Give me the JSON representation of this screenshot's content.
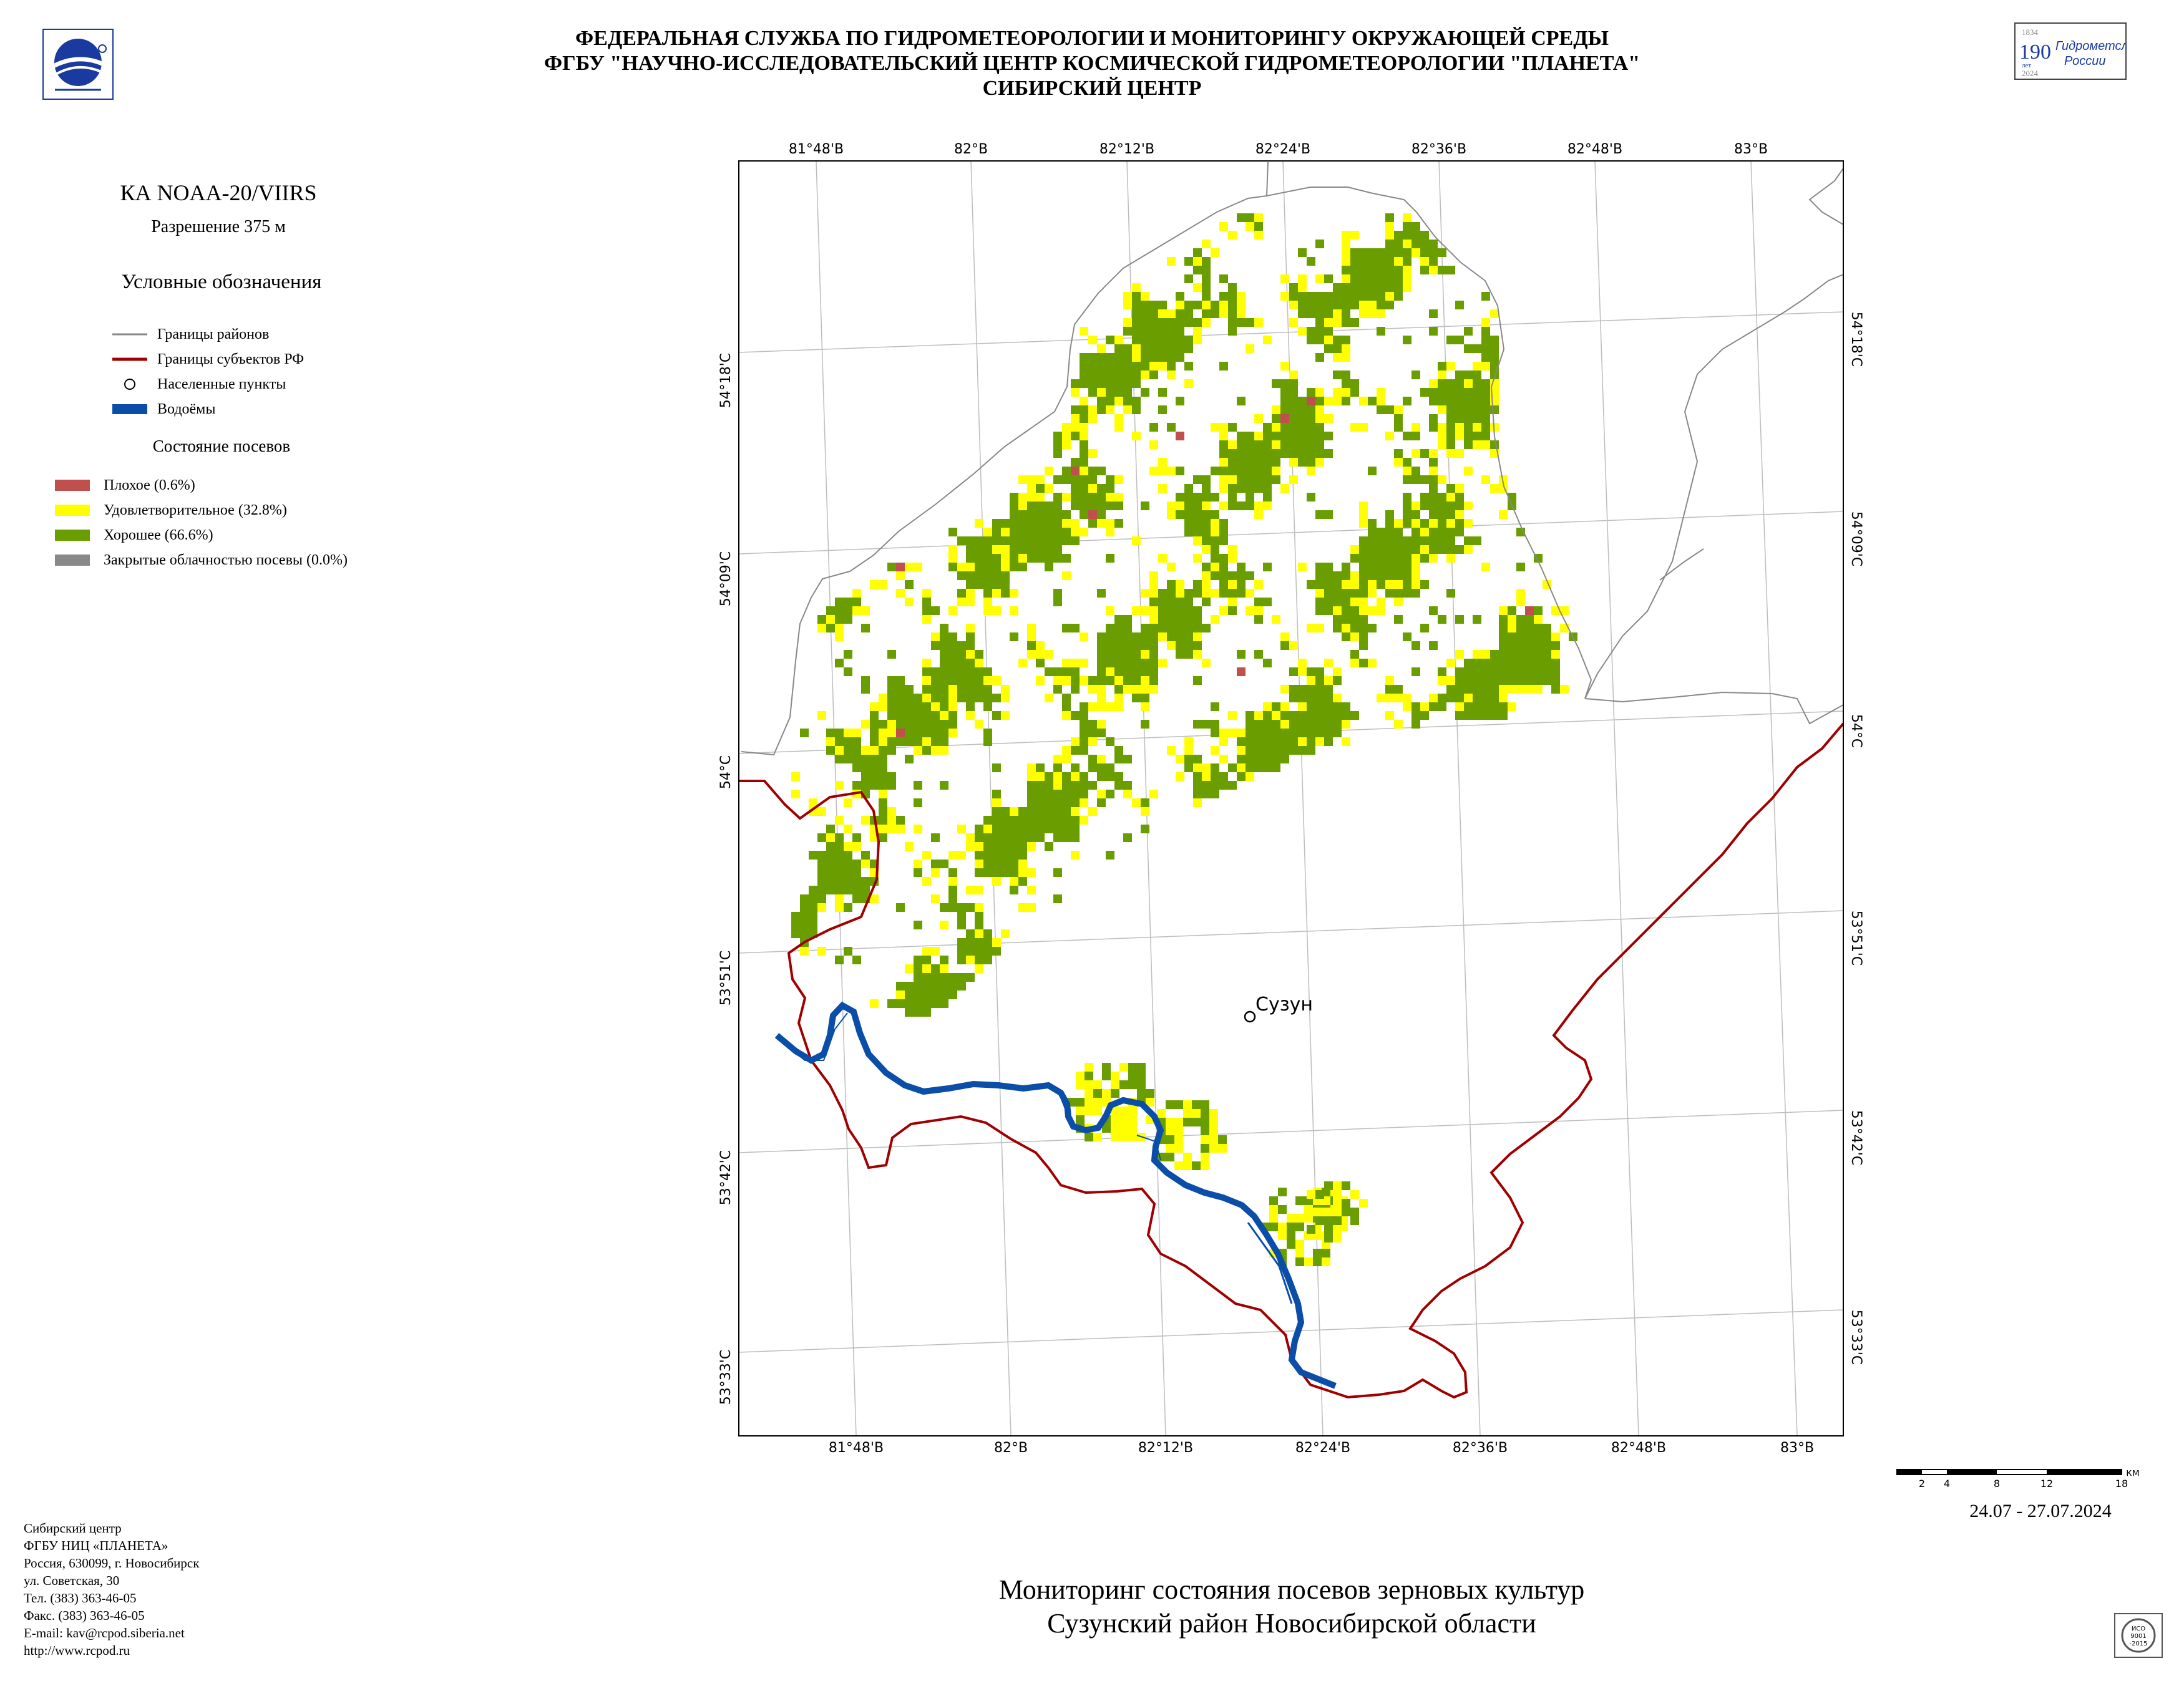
{
  "header": {
    "line1": "ФЕДЕРАЛЬНАЯ СЛУЖБА ПО ГИДРОМЕТЕОРОЛОГИИ И МОНИТОРИНГУ ОКРУЖАЮЩЕЙ СРЕДЫ",
    "line2": "ФГБУ \"НАУЧНО-ИССЛЕДОВАТЕЛЬСКИЙ ЦЕНТР КОСМИЧЕСКОЙ ГИДРОМЕТЕОРОЛОГИИ \"ПЛАНЕТА\"",
    "line3": "СИБИРСКИЙ ЦЕНТР"
  },
  "badge": {
    "year_top": "1834",
    "number": "190",
    "unit": "лет",
    "year_bottom": "2024",
    "text_line1": "Гидрометслужбе",
    "text_line2": "России"
  },
  "sidebar": {
    "satellite": "КА NOAA-20/VIIRS",
    "resolution": "Разрешение 375 м",
    "legend_title": "Условные обозначения",
    "legend": [
      {
        "label": "Границы районов",
        "symbol": "line",
        "color": "#888888"
      },
      {
        "label": "Границы субъектов РФ",
        "symbol": "line",
        "color": "#a00000"
      },
      {
        "label": "Населенные пункты",
        "symbol": "circle",
        "color": "#000000"
      },
      {
        "label": "Водоёмы",
        "symbol": "rect",
        "color": "#0b4ea8"
      }
    ],
    "state_title": "Состояние посевов",
    "states": [
      {
        "label": "Плохое (0.6%)",
        "color": "#c0504d"
      },
      {
        "label": "Удовлетворительное (32.8%)",
        "color": "#ffff00"
      },
      {
        "label": "Хорошее (66.6%)",
        "color": "#6a9e00"
      },
      {
        "label": "Закрытые облачностью посевы (0.0%)",
        "color": "#888888"
      }
    ]
  },
  "map": {
    "top_lon_labels": [
      "81°48'В",
      "82°В",
      "82°12'В",
      "82°24'В",
      "82°36'В",
      "82°48'В",
      "83°В"
    ],
    "bottom_lon_labels": [
      "81°48'В",
      "82°В",
      "82°12'В",
      "82°24'В",
      "82°36'В",
      "82°48'В",
      "83°В"
    ],
    "left_lat_labels": [
      "54°18'С",
      "54°09'С",
      "54°С",
      "53°51'С",
      "53°42'С",
      "53°33'С"
    ],
    "right_lat_labels": [
      "54°18'С",
      "54°09'С",
      "54°С",
      "53°51'С",
      "53°42'С",
      "53°33'С"
    ],
    "settlement": "Сузун",
    "colors": {
      "good": "#6a9e00",
      "satisfactory": "#ffff00",
      "poor": "#c0504d",
      "water": "#0b4ea8",
      "region": "#a00000",
      "district": "#888888",
      "grid": "#bdbdbd"
    }
  },
  "scale": {
    "ticks": [
      "2",
      "4",
      "8",
      "12",
      "18"
    ],
    "unit": "км"
  },
  "date": "24.07 - 27.07.2024",
  "footer": {
    "lines": [
      "Сибирский центр",
      "ФГБУ НИЦ «ПЛАНЕТА»",
      "Россия, 630099, г. Новосибирск",
      "ул. Советская, 30",
      "Тел. (383) 363-46-05",
      "Факс. (383) 363-46-05",
      "E-mail: kav@rcpod.siberia.net",
      "http://www.rcpod.ru"
    ]
  },
  "title": {
    "line1": "Мониторинг состояния посевов зерновых культур",
    "line2": "Сузунский район Новосибирской области"
  },
  "iso": {
    "line1": "ИСО",
    "line2": "9001",
    "line3": "-2015"
  }
}
